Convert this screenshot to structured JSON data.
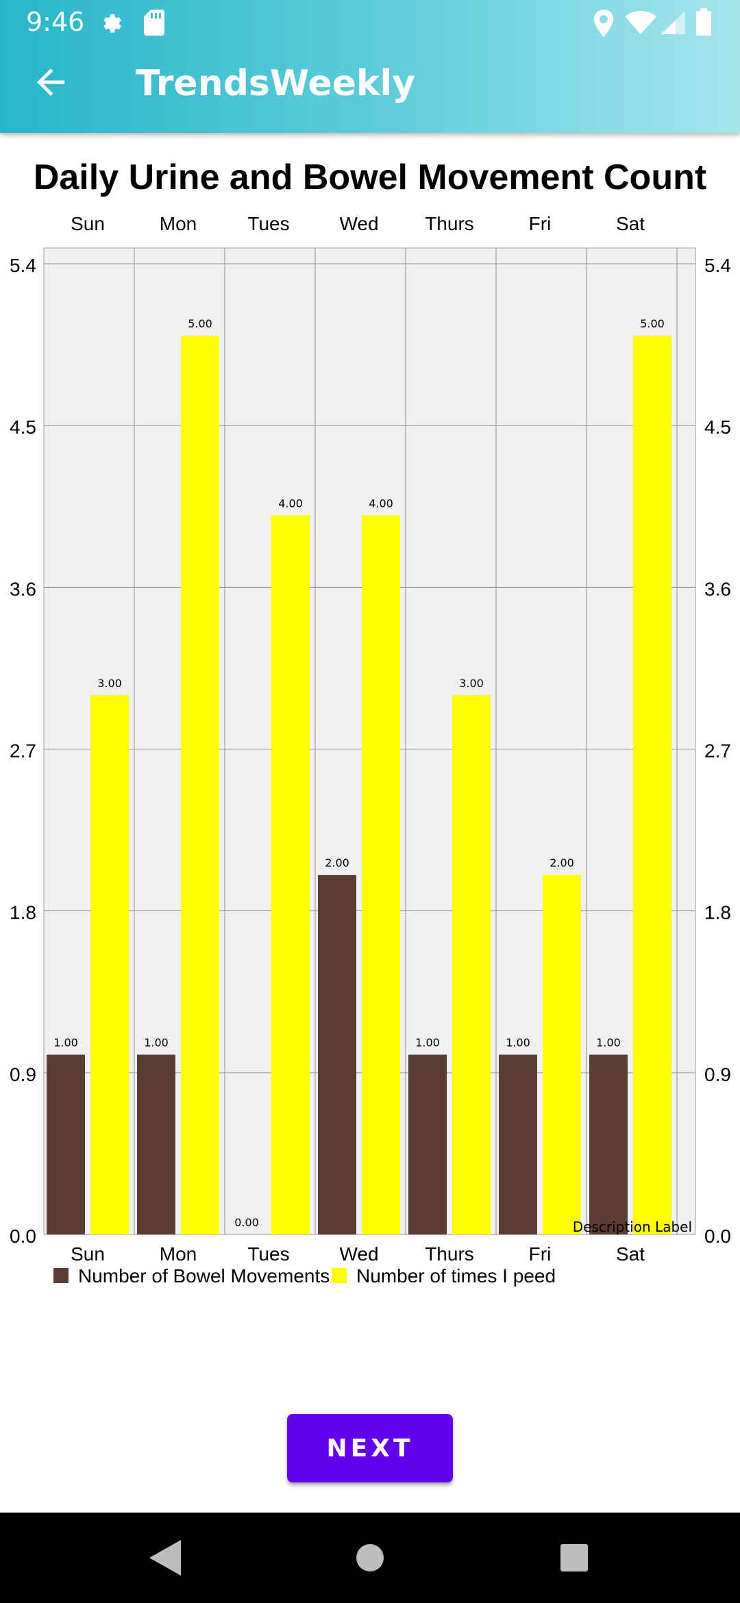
{
  "status_bar": {
    "time": "9:46"
  },
  "app_bar": {
    "title": "TrendsWeekly"
  },
  "colors": {
    "bowel": "#5b3d33",
    "pee": "#ffff00",
    "plot_bg": "#f0f0f0",
    "accent": "#6200ee"
  },
  "icons": [
    "gear-icon",
    "sd-card-icon",
    "location-icon",
    "wifi-icon",
    "signal-icon",
    "battery-icon",
    "back-arrow-icon",
    "nav-back-icon",
    "nav-home-icon",
    "nav-recents-icon"
  ],
  "chart_data": {
    "type": "bar",
    "title": "Daily Urine and Bowel Movement Count",
    "categories": [
      "Sun",
      "Mon",
      "Tues",
      "Wed",
      "Thurs",
      "Fri",
      "Sat"
    ],
    "series": [
      {
        "name": "Number of Bowel Movements",
        "values": [
          1,
          1,
          0,
          2,
          1,
          1,
          1
        ],
        "color": "#5b3d33"
      },
      {
        "name": "Number of times I peed",
        "values": [
          3,
          5,
          4,
          4,
          3,
          2,
          5
        ],
        "color": "#ffff00"
      }
    ],
    "ylim": [
      0,
      5.4
    ],
    "y_ticks": [
      "0.0",
      "0.9",
      "1.8",
      "2.7",
      "3.6",
      "4.5",
      "5.4"
    ],
    "y_tick_values": [
      0,
      0.9,
      1.8,
      2.7,
      3.6,
      4.5,
      5.4
    ],
    "grid": true,
    "legend": "bottom-left",
    "description": "Description Label",
    "value_format_decimals": 2
  },
  "actions": {
    "next_label": "NEXT"
  }
}
